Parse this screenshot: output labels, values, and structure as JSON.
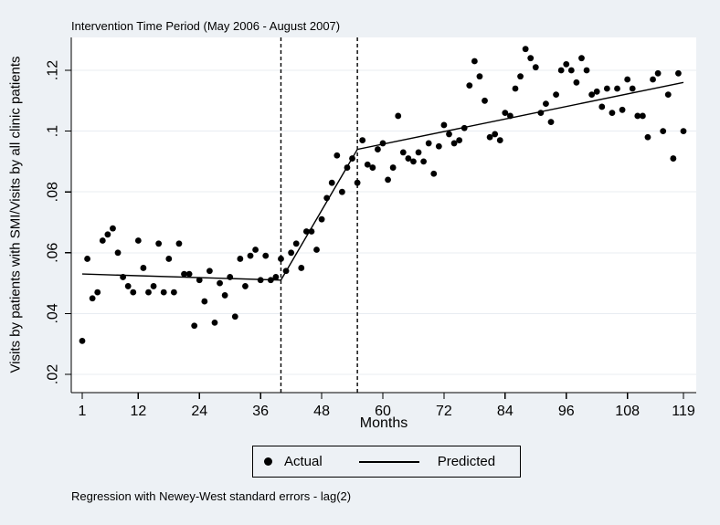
{
  "title": "Intervention Time Period (May 2006 - August 2007)",
  "y_axis_label": "Visits by patients with SMI/Visits by all clinic patients",
  "x_axis_label": "Months",
  "footnote": "Regression with Newey-West standard errors - lag(2)",
  "legend": {
    "actual_label": "Actual",
    "predicted_label": "Predicted"
  },
  "colors": {
    "background": "#edf1f5",
    "plot_background": "#ffffff",
    "gridline": "#e8ecf1",
    "axis": "#000000",
    "marker": "#000000",
    "predicted_line": "#000000",
    "reference_line": "#000000"
  },
  "chart_data": {
    "type": "scatter",
    "title": "Intervention Time Period (May 2006 - August 2007)",
    "xlabel": "Months",
    "ylabel": "Visits by patients with SMI/Visits by all clinic patients",
    "xlim": [
      -1.2,
      121.5
    ],
    "ylim": [
      0.014,
      0.131
    ],
    "x_ticks": [
      1,
      12,
      24,
      36,
      48,
      60,
      72,
      84,
      96,
      108,
      119
    ],
    "y_ticks": [
      0.02,
      0.04,
      0.06,
      0.08,
      0.1,
      0.12
    ],
    "y_tick_labels": [
      ".02",
      ".04",
      ".06",
      ".08",
      ".1",
      ".12"
    ],
    "grid": "horizontal",
    "intervention_lines_x": [
      40,
      55
    ],
    "series": [
      {
        "name": "Actual",
        "type": "scatter",
        "marker": "filled-circle",
        "color": "#000000",
        "x": {
          "start": 1,
          "step": 1,
          "count": 119
        },
        "y": [
          0.031,
          0.058,
          0.045,
          0.047,
          0.064,
          0.066,
          0.068,
          0.06,
          0.052,
          0.049,
          0.047,
          0.064,
          0.055,
          0.047,
          0.049,
          0.063,
          0.047,
          0.058,
          0.047,
          0.063,
          0.053,
          0.053,
          0.036,
          0.051,
          0.044,
          0.054,
          0.037,
          0.05,
          0.046,
          0.052,
          0.039,
          0.058,
          0.049,
          0.059,
          0.061,
          0.051,
          0.059,
          0.051,
          0.052,
          0.058,
          0.054,
          0.06,
          0.063,
          0.055,
          0.067,
          0.067,
          0.061,
          0.071,
          0.078,
          0.083,
          0.092,
          0.08,
          0.088,
          0.091,
          0.083,
          0.097,
          0.089,
          0.088,
          0.094,
          0.096,
          0.084,
          0.088,
          0.105,
          0.093,
          0.091,
          0.09,
          0.093,
          0.09,
          0.096,
          0.086,
          0.095,
          0.102,
          0.099,
          0.096,
          0.097,
          0.101,
          0.115,
          0.123,
          0.118,
          0.11,
          0.098,
          0.099,
          0.097,
          0.106,
          0.105,
          0.114,
          0.118,
          0.127,
          0.124,
          0.121,
          0.106,
          0.109,
          0.103,
          0.112,
          0.12,
          0.122,
          0.12,
          0.116,
          0.124,
          0.12,
          0.112,
          0.113,
          0.108,
          0.114,
          0.106,
          0.114,
          0.107,
          0.117,
          0.114,
          0.105,
          0.105,
          0.098,
          0.117,
          0.119,
          0.1,
          0.112,
          0.091,
          0.119,
          0.1
        ]
      },
      {
        "name": "Predicted",
        "type": "line",
        "color": "#000000",
        "points": [
          [
            1,
            0.053
          ],
          [
            40,
            0.051
          ],
          [
            55,
            0.094
          ],
          [
            119,
            0.116
          ]
        ]
      }
    ]
  }
}
